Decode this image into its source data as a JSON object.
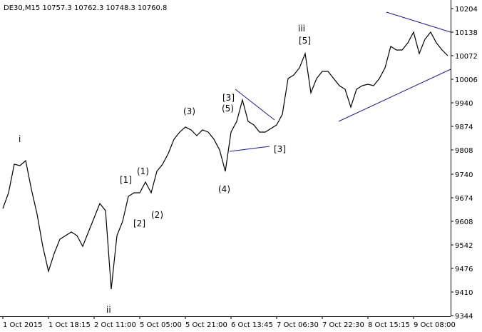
{
  "chart_data": {
    "type": "line",
    "title": "DE30,M15  10757.3 10762.3 10748.3 10760.8",
    "color": "#000000",
    "values": [
      9644,
      9688,
      9768,
      9764,
      9778,
      9698,
      9628,
      9538,
      9468,
      9518,
      9558,
      9568,
      9578,
      9568,
      9538,
      9578,
      9618,
      9658,
      9638,
      9418,
      9568,
      9608,
      9678,
      9688,
      9688,
      9718,
      9688,
      9748,
      9768,
      9798,
      9838,
      9858,
      9872,
      9864,
      9848,
      9864,
      9858,
      9838,
      9808,
      9748,
      9858,
      9888,
      9948,
      9888,
      9878,
      9858,
      9858,
      9868,
      9878,
      9908,
      10008,
      10018,
      10038,
      10078,
      9968,
      10008,
      10028,
      10028,
      10008,
      9988,
      9978,
      9928,
      9978,
      9988,
      9992,
      9988,
      10008,
      10038,
      10098,
      10088,
      10088,
      10108,
      10138,
      10078,
      10118,
      10138,
      10108,
      10088,
      10072
    ],
    "xlim": [
      -0.5,
      78.5
    ],
    "xticks": [
      {
        "value": 0,
        "label": "1 Oct 2015"
      },
      {
        "value": 8,
        "label": "1 Oct 18:15"
      },
      {
        "value": 16,
        "label": "2 Oct 11:00"
      },
      {
        "value": 24,
        "label": "5 Oct 05:00"
      },
      {
        "value": 32,
        "label": "5 Oct 21:00"
      },
      {
        "value": 40,
        "label": "6 Oct 13:45"
      },
      {
        "value": 48,
        "label": "7 Oct 06:30"
      },
      {
        "value": 56,
        "label": "7 Oct 22:30"
      },
      {
        "value": 64,
        "label": "8 Oct 15:15"
      },
      {
        "value": 72,
        "label": "9 Oct 08:00"
      }
    ],
    "ylim": [
      9342,
      10228
    ],
    "yticks": [
      9344,
      9410,
      9476,
      9542,
      9608,
      9674,
      9740,
      9808,
      9874,
      9940,
      10006,
      10072,
      10138,
      10204
    ],
    "annotations": [
      {
        "text": "i",
        "color": "#8b1a1a"
      },
      {
        "text": "ii",
        "color": "#8b1a1a"
      },
      {
        "text": "iii",
        "color": "#8b1a1a"
      },
      {
        "text": "[1]",
        "color": "#2e8b2e"
      },
      {
        "text": "[2]",
        "color": "#2e8b2e"
      },
      {
        "text": "(1)",
        "color": "#2a2a8a"
      },
      {
        "text": "(2)",
        "color": "#2a2a8a"
      },
      {
        "text": "(3)",
        "color": "#2a2a8a"
      },
      {
        "text": "(4)",
        "color": "#2a2a8a"
      },
      {
        "text": "(5)",
        "color": "#2a2a8a"
      },
      {
        "text": "[3]",
        "color": "#2e8b2e"
      },
      {
        "text": "[3]",
        "color": "#2e8b2e"
      },
      {
        "text": "[5]",
        "color": "#2e8b2e"
      }
    ]
  }
}
